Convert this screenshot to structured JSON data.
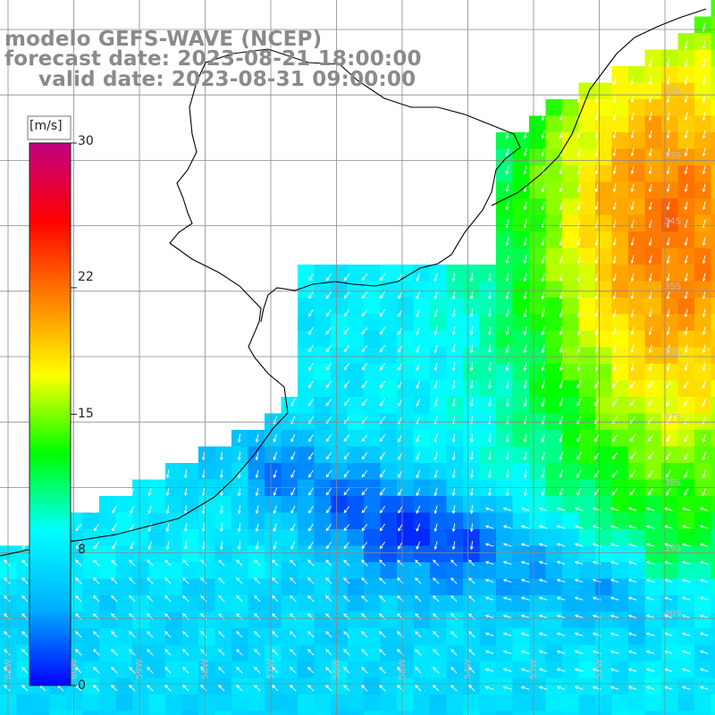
{
  "title": {
    "line1": "modelo GEFS-WAVE (NCEP)",
    "line2": "forecast date: 2023-08-21 18:00:00",
    "line3": "valid date: 2023-08-31 09:00:00"
  },
  "colorbar": {
    "unit": "[m/s]",
    "min": 0,
    "max": 30,
    "ticks": [
      "30",
      "22",
      "15",
      "8",
      "0"
    ],
    "tick_values": [
      30,
      22,
      15,
      8,
      0
    ],
    "stops": [
      "#0000ff",
      "#00b0ff",
      "#00ffff",
      "#00ff00",
      "#ffff00",
      "#ff8000",
      "#ff0000",
      "#c00080"
    ]
  },
  "grid": {
    "lat_labels": [
      "32S",
      "33S",
      "34S",
      "35S",
      "36S",
      "37S",
      "38S",
      "39S",
      "40S"
    ],
    "lon_labels": [
      "61W",
      "60W",
      "59W",
      "58W",
      "57W",
      "56W",
      "55W",
      "54W",
      "53W",
      "52W"
    ]
  },
  "colors": {
    "grid": "#8a8a8a",
    "coast": "#000000",
    "arrow": "#ffffff",
    "land": "#ffffff"
  }
}
